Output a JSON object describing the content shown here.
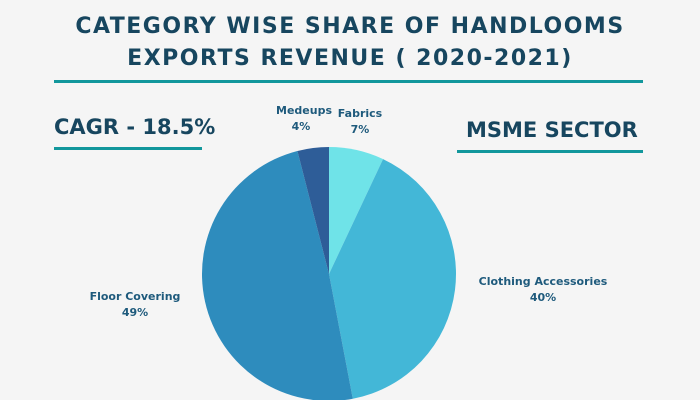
{
  "chart_data": {
    "type": "pie",
    "title": [
      "CATEGORY WISE SHARE OF HANDLOOMS",
      "EXPORTS REVENUE ( 2020-2021)"
    ],
    "slices": [
      {
        "label": "Fabrics",
        "value": 7,
        "display": "7%",
        "color": "#6fe3e8"
      },
      {
        "label": "Clothing Accessories",
        "value": 40,
        "display": "40%",
        "color": "#43b7d7"
      },
      {
        "label": "Floor Covering",
        "value": 49,
        "display": "49%",
        "color": "#2e8cbd"
      },
      {
        "label": "Medeups",
        "value": 4,
        "display": "4%",
        "color": "#2e5d98"
      }
    ],
    "start": "top",
    "direction": "clockwise"
  },
  "cagr": "CAGR - 18.5%",
  "sector": "MSME SECTOR"
}
